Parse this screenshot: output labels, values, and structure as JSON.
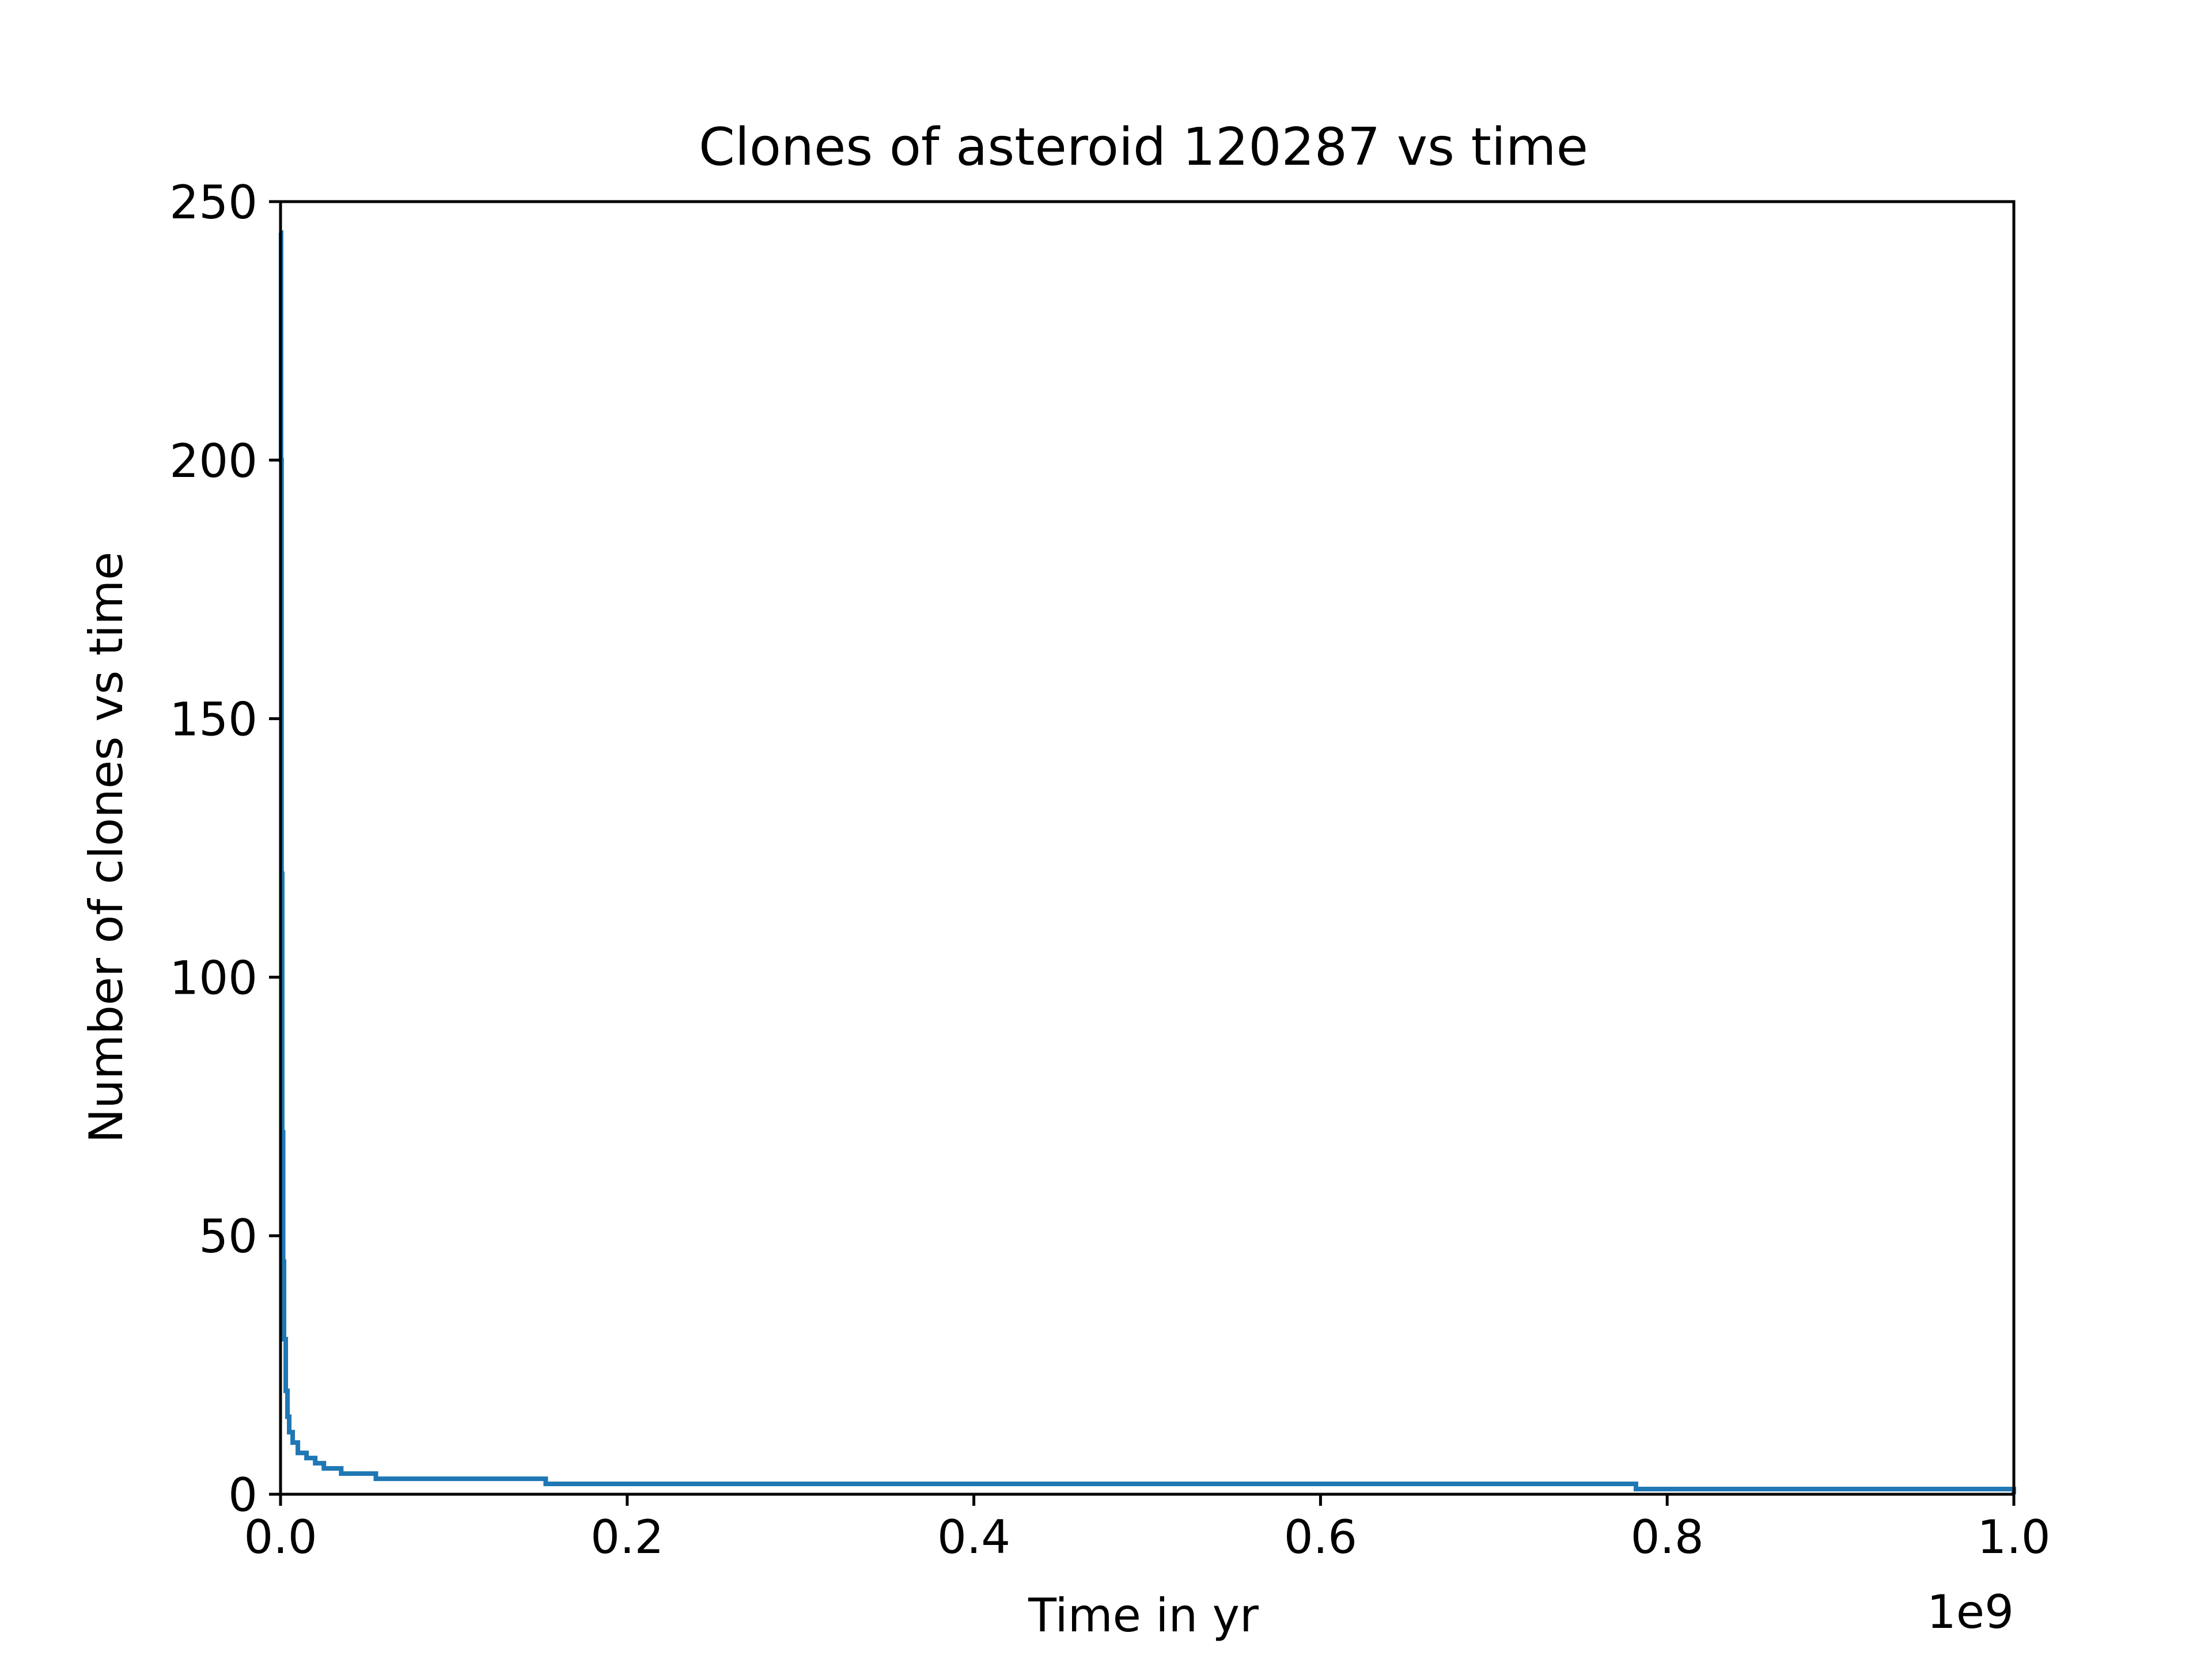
{
  "chart_data": {
    "type": "line",
    "title": "Clones of asteroid 120287 vs time",
    "xlabel": "Time in yr",
    "ylabel": "Number of clones vs time",
    "x_offset_label": "1e9",
    "xlim": [
      0.0,
      1.0
    ],
    "ylim": [
      0,
      250
    ],
    "x_unit_scale": "1e9",
    "xticks": [
      0.0,
      0.2,
      0.4,
      0.6,
      0.8,
      1.0
    ],
    "xtick_labels": [
      "0.0",
      "0.2",
      "0.4",
      "0.6",
      "0.8",
      "1.0"
    ],
    "yticks": [
      0,
      50,
      100,
      150,
      200,
      250
    ],
    "ytick_labels": [
      "0",
      "50",
      "100",
      "150",
      "200",
      "250"
    ],
    "grid": false,
    "legend": false,
    "series": [
      {
        "color": "#1f77b4",
        "drawstyle": "steps-post",
        "x": [
          0.0,
          0.0003,
          0.0006,
          0.001,
          0.0015,
          0.002,
          0.003,
          0.004,
          0.005,
          0.007,
          0.01,
          0.015,
          0.02,
          0.025,
          0.035,
          0.055,
          0.153,
          0.782,
          1.0
        ],
        "y": [
          244,
          200,
          120,
          70,
          45,
          30,
          20,
          15,
          12,
          10,
          8,
          7,
          6,
          5,
          4,
          3,
          2,
          1,
          0
        ]
      }
    ]
  }
}
